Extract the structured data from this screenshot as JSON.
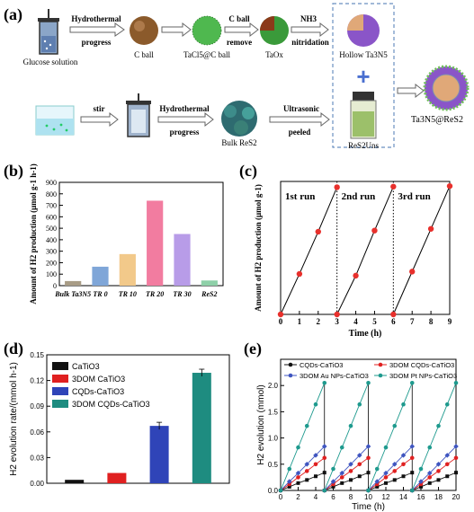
{
  "panel_a": {
    "label": "(a)",
    "steps_top": [
      "Glucose solution",
      "C ball",
      "TaCl5@C ball",
      "TaOx",
      "Hollow Ta3N5"
    ],
    "arrows_top": [
      {
        "line1": "Hydrothermal",
        "line2": "progress"
      },
      {
        "line1": "",
        "line2": ""
      },
      {
        "line1": "C ball",
        "line2": "remove"
      },
      {
        "line1": "NH3",
        "line2": "nitridation"
      }
    ],
    "steps_bottom": [
      "",
      "",
      "Bulk ReS2",
      "ReS2Uns"
    ],
    "arrows_bottom": [
      {
        "line1": "stir",
        "line2": ""
      },
      {
        "line1": "Hydrothermal",
        "line2": "progress"
      },
      {
        "line1": "Ultrasonic",
        "line2": "peeled"
      }
    ],
    "product": "Ta3N5@ReS2",
    "plus": "+"
  },
  "chart_data": [
    {
      "panel": "(b)",
      "type": "bar",
      "categories": [
        "Bulk Ta3N5",
        "TR 0",
        "TR 10",
        "TR 20",
        "TR 30",
        "ReS2"
      ],
      "values": [
        40,
        165,
        275,
        740,
        450,
        45
      ],
      "colors": [
        "#a89c86",
        "#7fa6d8",
        "#f2c98a",
        "#f27ca0",
        "#b89ce8",
        "#8ed0a8"
      ],
      "ylabel": "Amount of H2 production (μmol g-1 h-1)",
      "ylim": [
        0,
        900
      ],
      "yticks": [
        0,
        100,
        200,
        300,
        400,
        500,
        600,
        700,
        800,
        900
      ]
    },
    {
      "panel": "(c)",
      "type": "line",
      "runs": [
        {
          "name": "1st run",
          "x": [
            0,
            1,
            2,
            3
          ],
          "y": [
            0,
            700,
            1430,
            2200
          ]
        },
        {
          "name": "2nd run",
          "x": [
            3,
            4,
            5,
            6
          ],
          "y": [
            0,
            670,
            1450,
            2210
          ]
        },
        {
          "name": "3rd run",
          "x": [
            6,
            7,
            8,
            9
          ],
          "y": [
            0,
            740,
            1480,
            2220
          ]
        }
      ],
      "xlabel": "Time (h)",
      "ylabel": "Amount of H2 production (μmol g-1)",
      "xlim": [
        0,
        9
      ],
      "xticks": [
        0,
        1,
        2,
        3,
        4,
        5,
        6,
        7,
        8,
        9
      ],
      "ylim": [
        0,
        2300
      ],
      "dividers": [
        3,
        6
      ]
    },
    {
      "panel": "(d)",
      "type": "bar",
      "series": [
        {
          "name": "CaTiO3",
          "value": 0.004,
          "color": "#111111"
        },
        {
          "name": "3DOM CaTiO3",
          "value": 0.012,
          "color": "#e02020"
        },
        {
          "name": "CQDs-CaTiO3",
          "value": 0.067,
          "color": "#2f44b8"
        },
        {
          "name": "3DOM CQDs-CaTiO3",
          "value": 0.129,
          "color": "#1e8c80"
        }
      ],
      "ylabel": "H2 evolution rate/(mmol h-1)",
      "ylim": [
        0,
        0.15
      ],
      "yticks": [
        "0.00",
        "0.03",
        "0.06",
        "0.09",
        "0.12",
        "0.15"
      ],
      "legend_position": "top-left"
    },
    {
      "panel": "(e)",
      "type": "line",
      "xlabel": "Time (h)",
      "ylabel": "H2 evolution (mmol)",
      "xlim": [
        0,
        20
      ],
      "xticks": [
        0,
        2,
        4,
        6,
        8,
        10,
        12,
        14,
        16,
        18,
        20
      ],
      "ylim": [
        0,
        2.5
      ],
      "yticks": [
        "0.0",
        "0.5",
        "1.0",
        "1.5",
        "2.0"
      ],
      "dividers": [
        5,
        10,
        15
      ],
      "x": [
        0,
        1,
        2,
        3,
        4,
        5
      ],
      "series": [
        {
          "name": "CQDs-CaTiO3",
          "color": "#111111",
          "marker": "square",
          "y": [
            0,
            0.07,
            0.14,
            0.2,
            0.27,
            0.34
          ]
        },
        {
          "name": "3DOM CQDs-CaTiO3",
          "color": "#e02020",
          "marker": "circle",
          "y": [
            0,
            0.12,
            0.25,
            0.37,
            0.5,
            0.62
          ]
        },
        {
          "name": "3DOM Au NPs-CaTiO3",
          "color": "#3f55c0",
          "marker": "diamond",
          "y": [
            0,
            0.17,
            0.33,
            0.5,
            0.67,
            0.84
          ]
        },
        {
          "name": "3DOM Pt NPs-CaTiO3",
          "color": "#1e9a8e",
          "marker": "circle",
          "y": [
            0,
            0.41,
            0.82,
            1.23,
            1.64,
            2.05
          ]
        }
      ],
      "legend_position": "top"
    }
  ]
}
